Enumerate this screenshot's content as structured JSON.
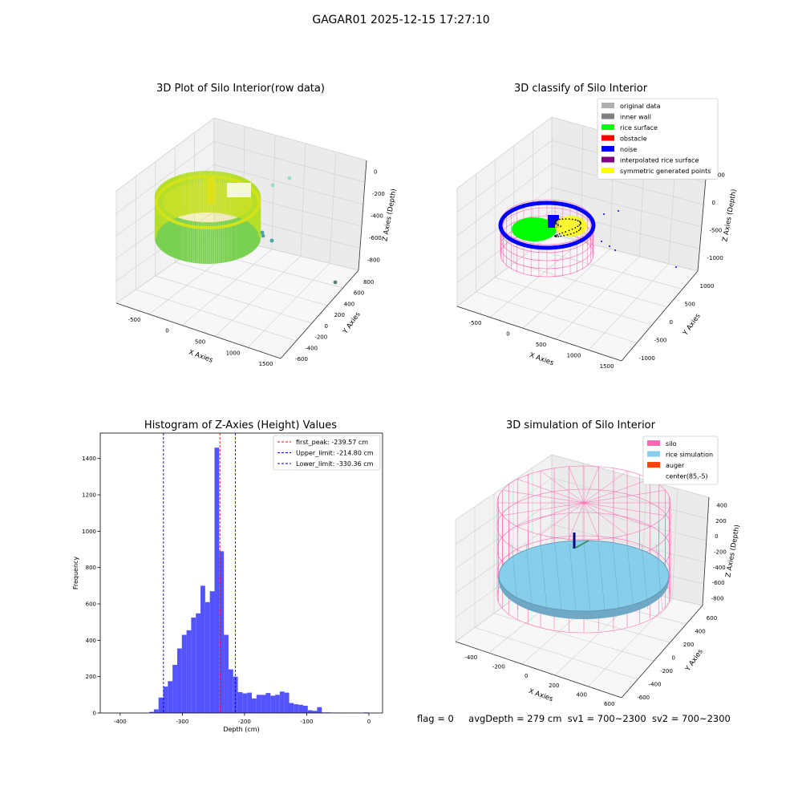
{
  "figure": {
    "suptitle": "GAGAR01 2025-12-15 17:27:10",
    "footer": {
      "flag": "flag = 0",
      "avg_depth": "avgDepth = 279 cm",
      "sv1": "sv1 = 700~2300",
      "sv2": "sv2 = 700~2300"
    }
  },
  "colors": {
    "pane": "#f2f2f2",
    "grid": "#d3d3d3",
    "hist_bar": "#4b4bff",
    "peak_line": "#ff0000",
    "limit_line": "#0000cc",
    "silo_mesh": "#ff69b4",
    "rice_sim": "#87ceeb",
    "auger": "#ff4500",
    "rice_surface": "#00ff00",
    "noise": "#0000ff"
  },
  "chart_data": [
    {
      "type": "scatter",
      "projection": "3d",
      "title": "3D Plot of Silo Interior(row data)",
      "xlabel": "X Axies",
      "ylabel": "Y Axies",
      "zlabel": "Z Axies (Depth)",
      "x_ticks": [
        "-500",
        "0",
        "500",
        "1000",
        "1500"
      ],
      "y_ticks": [
        "-600",
        "-400",
        "-200",
        "0",
        "200",
        "400",
        "600",
        "800"
      ],
      "z_ticks": [
        "0",
        "-200",
        "-400",
        "-600",
        "-800"
      ],
      "colormap": "viridis"
    },
    {
      "type": "scatter",
      "projection": "3d",
      "title": "3D classify of Silo Interior",
      "xlabel": "X Axies",
      "ylabel": "Y Axies",
      "zlabel": "Z Axies (Depth)",
      "x_ticks": [
        "-500",
        "0",
        "500",
        "1000",
        "1500"
      ],
      "y_ticks": [
        "-1000",
        "-500",
        "0",
        "500",
        "1000"
      ],
      "z_ticks": [
        "500",
        "0",
        "-500",
        "-1000"
      ],
      "legend": [
        {
          "label": "original data",
          "color": "#b0b0b0"
        },
        {
          "label": "inner wall",
          "color": "#808080"
        },
        {
          "label": "rice surface",
          "color": "#00ff00"
        },
        {
          "label": "obstacle",
          "color": "#ff0000"
        },
        {
          "label": "noise",
          "color": "#0000ff"
        },
        {
          "label": "interpolated rice surface",
          "color": "#800080"
        },
        {
          "label": "symmetric generated points",
          "color": "#ffff00"
        }
      ],
      "legend_position": "upper right"
    },
    {
      "type": "bar",
      "title": "Histogram of Z-Axies (Height) Values",
      "xlabel": "Depth (cm)",
      "ylabel": "Frequency",
      "xlim": [
        -432,
        22
      ],
      "ylim": [
        0,
        1540
      ],
      "x_ticks": [
        -400,
        -300,
        -200,
        -100,
        0
      ],
      "y_ticks": [
        0,
        200,
        400,
        600,
        800,
        1000,
        1200,
        1400
      ],
      "bin_width": 7.5,
      "bins": [
        {
          "x": -349.5,
          "count": 6
        },
        {
          "x": -342,
          "count": 20
        },
        {
          "x": -334.5,
          "count": 85
        },
        {
          "x": -327,
          "count": 145
        },
        {
          "x": -319.5,
          "count": 175
        },
        {
          "x": -312,
          "count": 265
        },
        {
          "x": -304.5,
          "count": 355
        },
        {
          "x": -297,
          "count": 430
        },
        {
          "x": -289.5,
          "count": 455
        },
        {
          "x": -282,
          "count": 525
        },
        {
          "x": -274.5,
          "count": 548
        },
        {
          "x": -267,
          "count": 700
        },
        {
          "x": -259.5,
          "count": 610
        },
        {
          "x": -252,
          "count": 670
        },
        {
          "x": -244.5,
          "count": 1460
        },
        {
          "x": -237,
          "count": 890
        },
        {
          "x": -229.5,
          "count": 430
        },
        {
          "x": -222,
          "count": 240
        },
        {
          "x": -214.5,
          "count": 200
        },
        {
          "x": -207,
          "count": 115
        },
        {
          "x": -199.5,
          "count": 108
        },
        {
          "x": -192,
          "count": 112
        },
        {
          "x": -184.5,
          "count": 80
        },
        {
          "x": -177,
          "count": 100
        },
        {
          "x": -169.5,
          "count": 100
        },
        {
          "x": -162,
          "count": 110
        },
        {
          "x": -154.5,
          "count": 95
        },
        {
          "x": -147,
          "count": 100
        },
        {
          "x": -139.5,
          "count": 118
        },
        {
          "x": -132,
          "count": 112
        },
        {
          "x": -124.5,
          "count": 55
        },
        {
          "x": -117,
          "count": 48
        },
        {
          "x": -109.5,
          "count": 45
        },
        {
          "x": -102,
          "count": 40
        },
        {
          "x": -94.5,
          "count": 15
        },
        {
          "x": -87,
          "count": 12
        },
        {
          "x": -79.5,
          "count": 32
        },
        {
          "x": -72,
          "count": 3
        },
        {
          "x": -64.5,
          "count": 3
        },
        {
          "x": -57,
          "count": 2
        },
        {
          "x": -49.5,
          "count": 2
        },
        {
          "x": -42,
          "count": 1
        },
        {
          "x": -34.5,
          "count": 1
        },
        {
          "x": -27,
          "count": 1
        },
        {
          "x": -19.5,
          "count": 1
        },
        {
          "x": -12,
          "count": 1
        },
        {
          "x": -4.5,
          "count": 3
        }
      ],
      "vlines": [
        {
          "label": "first_peak: -239.57 cm",
          "x": -239.57,
          "color": "#ff0000"
        },
        {
          "label": "Upper_limit: -214.80 cm",
          "x": -214.8,
          "color": "#0000cc"
        },
        {
          "label": "Lower_limit: -330.36 cm",
          "x": -330.36,
          "color": "#0000cc"
        }
      ],
      "legend_position": "upper right"
    },
    {
      "type": "scatter",
      "projection": "3d",
      "title": "3D simulation of Silo Interior",
      "xlabel": "X Axies",
      "ylabel": "Y Axies",
      "zlabel": "Z Axies (Depth)",
      "x_ticks": [
        "-400",
        "-200",
        "0",
        "200",
        "400",
        "600"
      ],
      "y_ticks": [
        "-600",
        "-400",
        "-200",
        "0",
        "200",
        "400",
        "600"
      ],
      "z_ticks": [
        "400",
        "200",
        "0",
        "-200",
        "-400",
        "-600",
        "-800"
      ],
      "legend": [
        {
          "label": "silo",
          "color": "#ff69b4"
        },
        {
          "label": "rice simulation",
          "color": "#87ceeb"
        },
        {
          "label": "auger",
          "color": "#ff4500"
        },
        {
          "label": "center(85,-5)",
          "color": ""
        }
      ],
      "legend_position": "upper right"
    }
  ]
}
